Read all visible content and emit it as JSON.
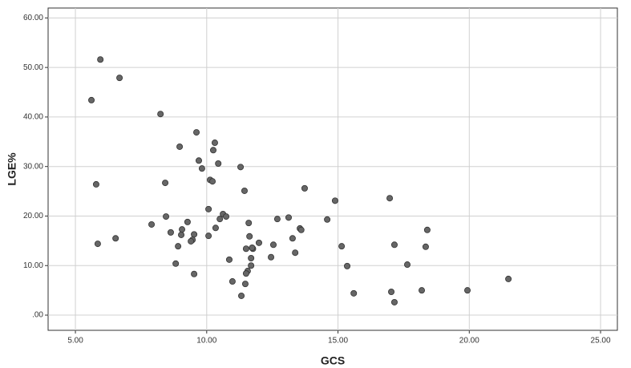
{
  "chart_data": {
    "type": "scatter",
    "x_label": "GCS",
    "y_label": "LGE%",
    "xlim": [
      3.96,
      25.64
    ],
    "ylim": [
      -3.07,
      62
    ],
    "xticks": [
      {
        "value": 5,
        "label": "5.00"
      },
      {
        "value": 10,
        "label": "10.00"
      },
      {
        "value": 15,
        "label": "15.00"
      },
      {
        "value": 20,
        "label": "20.00"
      },
      {
        "value": 25,
        "label": "25.00"
      }
    ],
    "yticks": [
      {
        "value": 0,
        "label": ".00"
      },
      {
        "value": 10,
        "label": "10.00"
      },
      {
        "value": 20,
        "label": "20.00"
      },
      {
        "value": 30,
        "label": "30.00"
      },
      {
        "value": 40,
        "label": "40.00"
      },
      {
        "value": 50,
        "label": "50.00"
      },
      {
        "value": 60,
        "label": "60.00"
      }
    ],
    "grid": true,
    "series": [
      {
        "color": "#666666",
        "x": [
          5.95,
          6.68,
          5.61,
          8.24,
          9.61,
          10.31,
          8.97,
          10.25,
          9.7,
          10.44,
          9.82,
          11.29,
          10.13,
          10.22,
          5.79,
          8.42,
          11.44,
          13.73,
          14.89,
          16.97,
          10.07,
          10.62,
          10.74,
          10.5,
          8.45,
          9.27,
          11.6,
          12.69,
          13.12,
          14.59,
          7.9,
          18.4,
          10.34,
          13.55,
          13.6,
          9.06,
          8.63,
          9.52,
          9.03,
          10.07,
          11.63,
          6.53,
          9.46,
          9.4,
          13.27,
          5.85,
          11.99,
          12.54,
          11.76,
          11.5,
          11.73,
          8.91,
          15.14,
          17.15,
          18.34,
          13.37,
          11.69,
          12.45,
          10.86,
          8.82,
          11.69,
          15.35,
          17.64,
          11.56,
          11.5,
          9.52,
          10.98,
          11.47,
          21.49,
          19.93,
          18.19,
          15.6,
          17.03,
          11.32,
          17.15
        ],
        "values": [
          51.6,
          47.9,
          43.4,
          40.6,
          36.9,
          34.8,
          34.0,
          33.3,
          31.2,
          30.6,
          29.6,
          29.9,
          27.3,
          27.0,
          26.4,
          26.7,
          25.1,
          25.6,
          23.1,
          23.6,
          21.4,
          20.4,
          19.9,
          19.4,
          19.9,
          18.8,
          18.6,
          19.4,
          19.7,
          19.3,
          18.3,
          17.2,
          17.6,
          17.5,
          17.2,
          17.3,
          16.7,
          16.3,
          16.2,
          16.0,
          15.9,
          15.5,
          15.2,
          14.9,
          15.5,
          14.4,
          14.6,
          14.2,
          13.4,
          13.4,
          13.6,
          13.9,
          13.9,
          14.2,
          13.8,
          12.6,
          11.5,
          11.7,
          11.2,
          10.4,
          10.0,
          9.9,
          10.2,
          8.9,
          8.4,
          8.3,
          6.8,
          6.3,
          7.3,
          5.0,
          5.0,
          4.4,
          4.7,
          3.9,
          2.6
        ]
      }
    ]
  }
}
